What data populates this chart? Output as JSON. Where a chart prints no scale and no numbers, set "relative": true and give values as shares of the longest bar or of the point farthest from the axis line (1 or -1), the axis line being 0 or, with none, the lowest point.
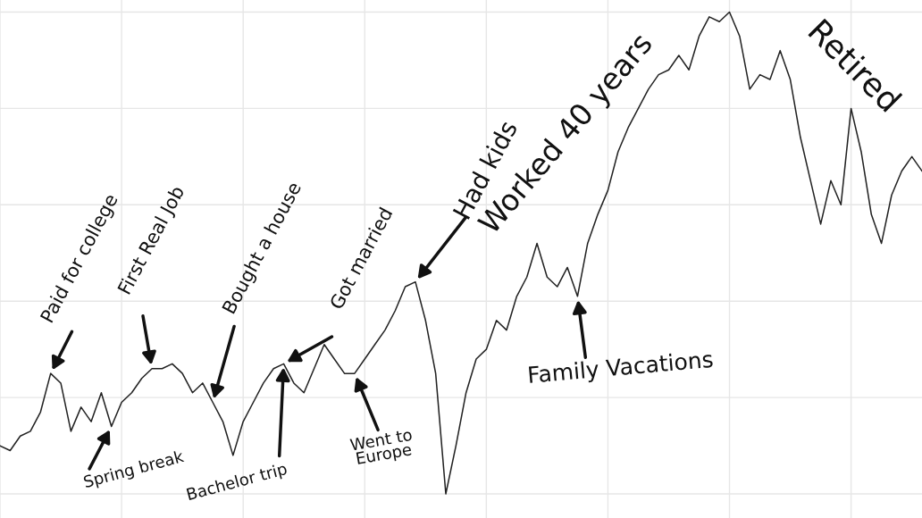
{
  "chart_data": {
    "type": "line",
    "relative": true,
    "color": "#222222",
    "grid": true,
    "categories": [
      null,
      null,
      null,
      null,
      null,
      null,
      null,
      null,
      null,
      null,
      null,
      null,
      null,
      null,
      null,
      null,
      null,
      null,
      null,
      null,
      null,
      null,
      null,
      null,
      null,
      null,
      null,
      null,
      null,
      null,
      null,
      null,
      null,
      null,
      null,
      null,
      null,
      null,
      null,
      null,
      null,
      null,
      null,
      null,
      null,
      null,
      null,
      null,
      null,
      null,
      null,
      null,
      null,
      null,
      null,
      null,
      null,
      null,
      null,
      null,
      null,
      null,
      null,
      null,
      null,
      null,
      null,
      null,
      null,
      null,
      null,
      null,
      null,
      null,
      null,
      null,
      null,
      null,
      null,
      null,
      null,
      null,
      null,
      null,
      null,
      null,
      null,
      null,
      null,
      null,
      null,
      null
    ],
    "values": [
      0.1,
      0.09,
      0.12,
      0.13,
      0.17,
      0.25,
      0.23,
      0.13,
      0.18,
      0.15,
      0.21,
      0.14,
      0.19,
      0.21,
      0.24,
      0.26,
      0.26,
      0.27,
      0.25,
      0.21,
      0.23,
      0.19,
      0.15,
      0.08,
      0.15,
      0.19,
      0.23,
      0.26,
      0.27,
      0.23,
      0.21,
      0.26,
      0.31,
      0.28,
      0.25,
      0.25,
      0.28,
      0.31,
      0.34,
      0.38,
      0.43,
      0.44,
      0.36,
      0.25,
      0,
      0.1,
      0.21,
      0.28,
      0.3,
      0.36,
      0.34,
      0.41,
      0.45,
      0.52,
      0.45,
      0.43,
      0.47,
      0.41,
      0.52,
      0.58,
      0.63,
      0.71,
      0.76,
      0.8,
      0.84,
      0.87,
      0.88,
      0.91,
      0.88,
      0.95,
      0.99,
      0.98,
      1,
      0.95,
      0.84,
      0.87,
      0.86,
      0.92,
      0.86,
      0.74,
      0.65,
      0.56,
      0.65,
      0.6,
      0.8,
      0.71,
      0.58,
      0.52,
      0.62,
      0.67,
      0.7,
      0.67
    ],
    "annotations": [
      "Paid for college",
      "First Real Job",
      "Bought a house",
      "Got married",
      "Had kids",
      "Worked 40 years",
      "Retired",
      "Spring break",
      "Bachelor trip",
      "Went to\nEurope",
      "Family Vacations"
    ]
  }
}
